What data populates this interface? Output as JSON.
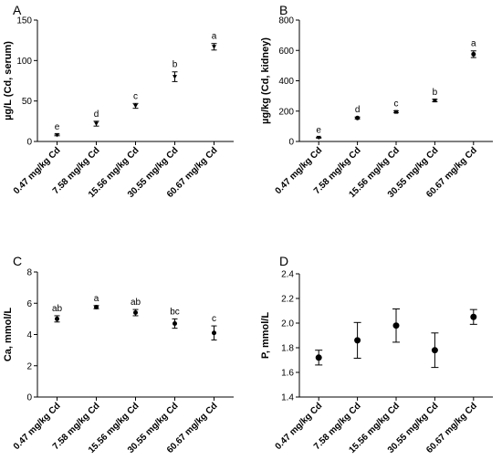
{
  "chart_data": [
    {
      "panel": "A",
      "type": "scatter",
      "ylabel": "µg/L (Cd, serum)",
      "ylim": [
        0,
        150
      ],
      "yticks": [
        0,
        50,
        100,
        150
      ],
      "categories": [
        "0.47 mg/kg Cd",
        "7.58 mg/kg Cd",
        "15.56 mg/kg Cd",
        "30.55 mg/kg Cd",
        "60.67 mg/kg Cd"
      ],
      "values": [
        8,
        22,
        44,
        80,
        117
      ],
      "errors": [
        1,
        3,
        3,
        6,
        4
      ],
      "sig_letters": [
        "e",
        "d",
        "c",
        "b",
        "a"
      ],
      "marker": "triangle-down"
    },
    {
      "panel": "B",
      "type": "scatter",
      "ylabel": "µg/kg (Cd, kidney)",
      "ylim": [
        0,
        800
      ],
      "yticks": [
        0,
        200,
        400,
        600,
        800
      ],
      "categories": [
        "0.47 mg/kg Cd",
        "7.58 mg/kg Cd",
        "15.56 mg/kg Cd",
        "30.55 mg/kg Cd",
        "60.67 mg/kg Cd"
      ],
      "values": [
        25,
        155,
        195,
        270,
        575
      ],
      "errors": [
        3,
        6,
        6,
        8,
        22
      ],
      "sig_letters": [
        "e",
        "d",
        "c",
        "b",
        "a"
      ],
      "marker": "mixed"
    },
    {
      "panel": "C",
      "type": "scatter",
      "ylabel": "Ca, mmol/L",
      "ylim": [
        0,
        8
      ],
      "yticks": [
        0,
        2,
        4,
        6,
        8
      ],
      "categories": [
        "0.47 mg/kg Cd",
        "7.58 mg/kg Cd",
        "15.56 mg/kg Cd",
        "30.55 mg/kg Cd",
        "60.67 mg/kg Cd"
      ],
      "values": [
        5.0,
        5.75,
        5.4,
        4.7,
        4.1
      ],
      "errors": [
        0.2,
        0.1,
        0.2,
        0.3,
        0.45
      ],
      "sig_letters": [
        "ab",
        "a",
        "ab",
        "bc",
        "c"
      ],
      "marker": "circle"
    },
    {
      "panel": "D",
      "type": "scatter",
      "ylabel": "P, mmol/L",
      "ylim": [
        1.4,
        2.4
      ],
      "yticks": [
        "1.4",
        "1.6",
        "1.8",
        "2.0",
        "2.2",
        "2.4"
      ],
      "categories": [
        "0.47 mg/kg Cd",
        "7.58 mg/kg Cd",
        "15.56 mg/kg Cd",
        "30.55 mg/kg Cd",
        "60.67 mg/kg Cd"
      ],
      "values": [
        1.72,
        1.86,
        1.98,
        1.78,
        2.05
      ],
      "errors": [
        0.06,
        0.145,
        0.135,
        0.14,
        0.06
      ],
      "sig_letters": [],
      "marker": "circle-large"
    }
  ]
}
